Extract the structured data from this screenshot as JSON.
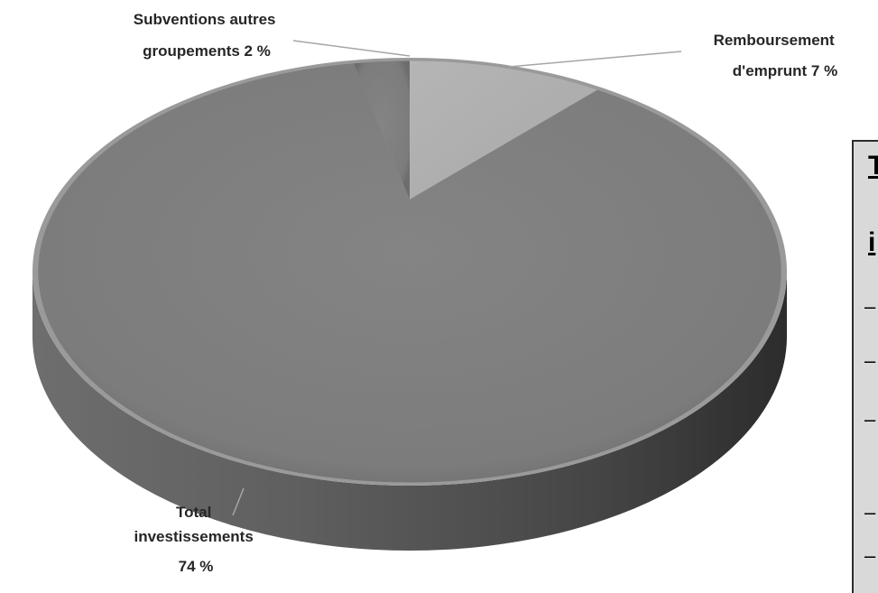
{
  "chart_data": {
    "type": "pie",
    "categories": [
      "Remboursement d'emprunt",
      "Total investissements",
      "Subventions autres groupements"
    ],
    "values": [
      7,
      74,
      2
    ],
    "value_suffix": " %",
    "labels": [
      {
        "lines": [
          "Remboursement",
          "d'emprunt 7 %"
        ]
      },
      {
        "lines": [
          "Total",
          "investissements",
          "74 %"
        ]
      },
      {
        "lines": [
          "Subventions autres",
          "groupements 2 %"
        ]
      }
    ],
    "colors": {
      "remboursement": "#b0b0b0",
      "total": "#7e7e7e",
      "subventions": "#7e7e7e",
      "side": "#5a5a5a",
      "leader": "#a6a6a6",
      "label_text": "#262626"
    },
    "style": "3d-pie"
  },
  "legend": {
    "title_line1": "T",
    "title_line2": "i",
    "items": [
      "–",
      "–",
      "–",
      "–",
      "–"
    ],
    "background": "#d9d9d9"
  }
}
